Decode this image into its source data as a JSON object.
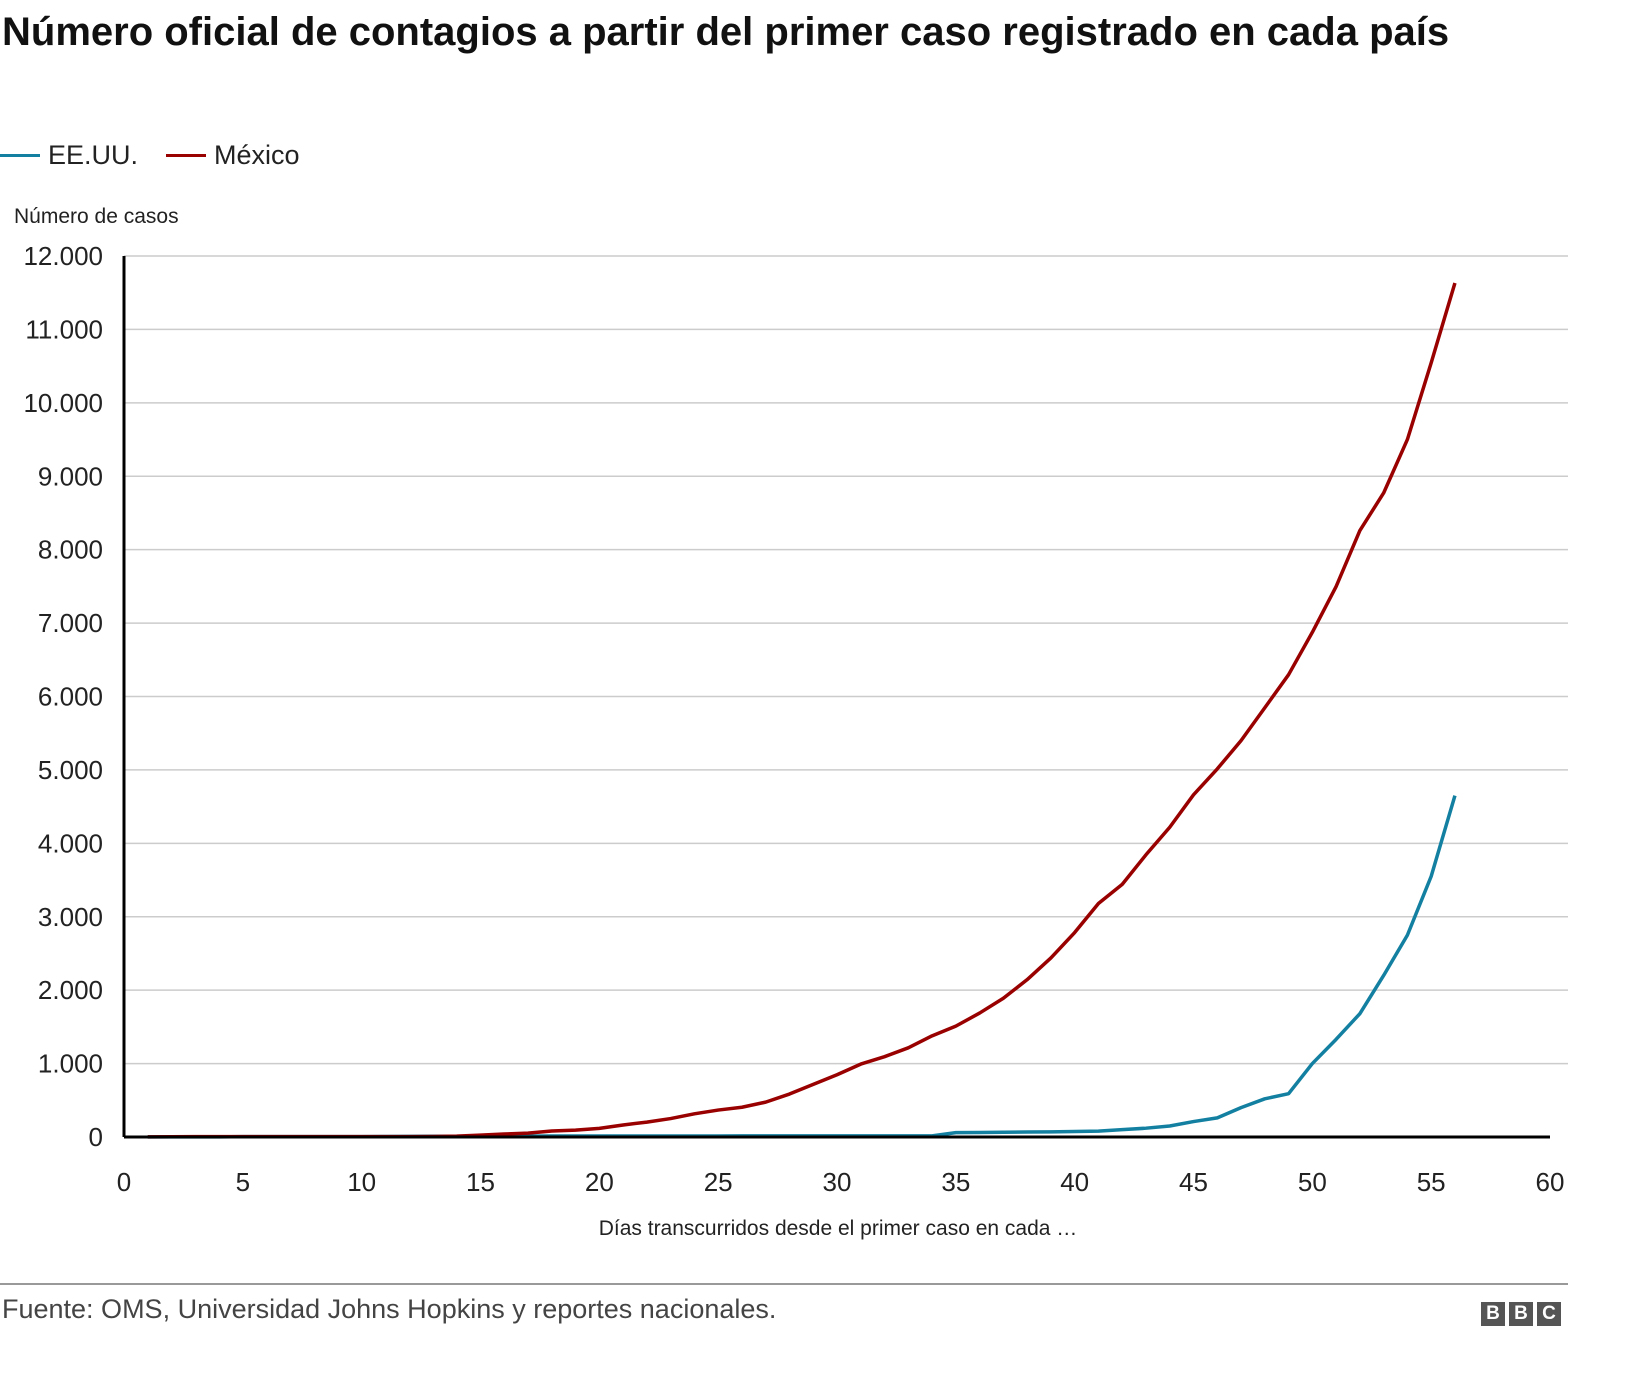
{
  "chart_data": {
    "type": "line",
    "title": "Número oficial de contagios a partir del primer caso registrado en cada país",
    "xlabel": "Días transcurridos desde el primer caso en cada …",
    "ylabel": "Número de casos",
    "xlim": [
      0,
      60
    ],
    "ylim": [
      0,
      12000
    ],
    "xticks": [
      0,
      5,
      10,
      15,
      20,
      25,
      30,
      35,
      40,
      45,
      50,
      55,
      60
    ],
    "yticks": [
      0,
      1000,
      2000,
      3000,
      4000,
      5000,
      6000,
      7000,
      8000,
      9000,
      10000,
      11000,
      12000
    ],
    "ytick_labels": [
      "0",
      "1.000",
      "2.000",
      "3.000",
      "4.000",
      "5.000",
      "6.000",
      "7.000",
      "8.000",
      "9.000",
      "10.000",
      "11.000",
      "12.000"
    ],
    "grid": true,
    "legend_position": "top-left",
    "x": [
      1,
      2,
      3,
      4,
      5,
      6,
      7,
      8,
      9,
      10,
      11,
      12,
      13,
      14,
      15,
      16,
      17,
      18,
      19,
      20,
      21,
      22,
      23,
      24,
      25,
      26,
      27,
      28,
      29,
      30,
      31,
      32,
      33,
      34,
      35,
      36,
      37,
      38,
      39,
      40,
      41,
      42,
      43,
      44,
      45,
      46,
      47,
      48,
      49,
      50,
      51,
      52,
      53,
      54,
      55,
      56
    ],
    "series": [
      {
        "name": "EE.UU.",
        "color": "#1380A1",
        "values": [
          1,
          1,
          1,
          2,
          5,
          5,
          5,
          5,
          5,
          5,
          7,
          8,
          11,
          11,
          11,
          12,
          12,
          13,
          13,
          14,
          14,
          14,
          14,
          14,
          14,
          15,
          15,
          15,
          15,
          15,
          15,
          15,
          15,
          15,
          60,
          62,
          64,
          68,
          70,
          75,
          80,
          100,
          120,
          150,
          210,
          260,
          400,
          520,
          590,
          1000,
          1330,
          1680,
          2200,
          2750,
          3550,
          4650
        ]
      },
      {
        "name": "México",
        "color": "#990000",
        "values": [
          1,
          4,
          5,
          5,
          5,
          5,
          5,
          5,
          5,
          5,
          5,
          5,
          7,
          12,
          26,
          41,
          53,
          82,
          93,
          118,
          164,
          203,
          251,
          316,
          367,
          405,
          475,
          585,
          717,
          848,
          993,
          1094,
          1215,
          1378,
          1510,
          1688,
          1890,
          2143,
          2439,
          2785,
          3181,
          3441,
          3844,
          4219,
          4661,
          5014,
          5399,
          5847,
          6297,
          6875,
          7497,
          8261,
          8772,
          9501,
          10544,
          11633
        ]
      }
    ]
  },
  "source": "Fuente: OMS, Universidad Johns Hopkins y reportes nacionales.",
  "logo": "BBC"
}
